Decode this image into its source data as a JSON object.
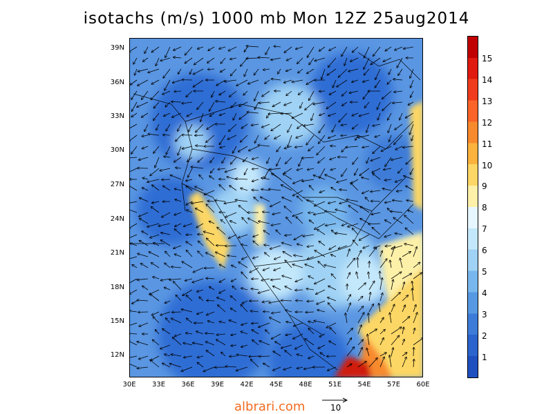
{
  "title": "isotachs (m/s) 1000 mb Mon 12Z 25aug2014",
  "lat_ticks": [
    "39N",
    "36N",
    "33N",
    "30N",
    "27N",
    "24N",
    "21N",
    "18N",
    "15N",
    "12N"
  ],
  "lon_ticks": [
    "30E",
    "33E",
    "36E",
    "39E",
    "42E",
    "45E",
    "48E",
    "51E",
    "54E",
    "57E",
    "60E"
  ],
  "colorbar": {
    "labels": [
      "15",
      "14",
      "13",
      "12",
      "11",
      "10",
      "9",
      "8",
      "7",
      "6",
      "5",
      "4",
      "3",
      "2",
      "1"
    ],
    "colors": [
      "#c00000",
      "#e01a10",
      "#f03c1c",
      "#fa6428",
      "#f88a2e",
      "#fbb33e",
      "#fcd765",
      "#fdf0a8",
      "#e6f7ff",
      "#c4e8fb",
      "#9fd2f4",
      "#78b7ed",
      "#5699e2",
      "#3c7cd8",
      "#2a64cc",
      "#1f50bf"
    ]
  },
  "map": {
    "lon_range": [
      30,
      60
    ],
    "lat_range": [
      10,
      39.7
    ]
  },
  "watermark": "albrari.com",
  "reference_vector": {
    "value": "10"
  }
}
